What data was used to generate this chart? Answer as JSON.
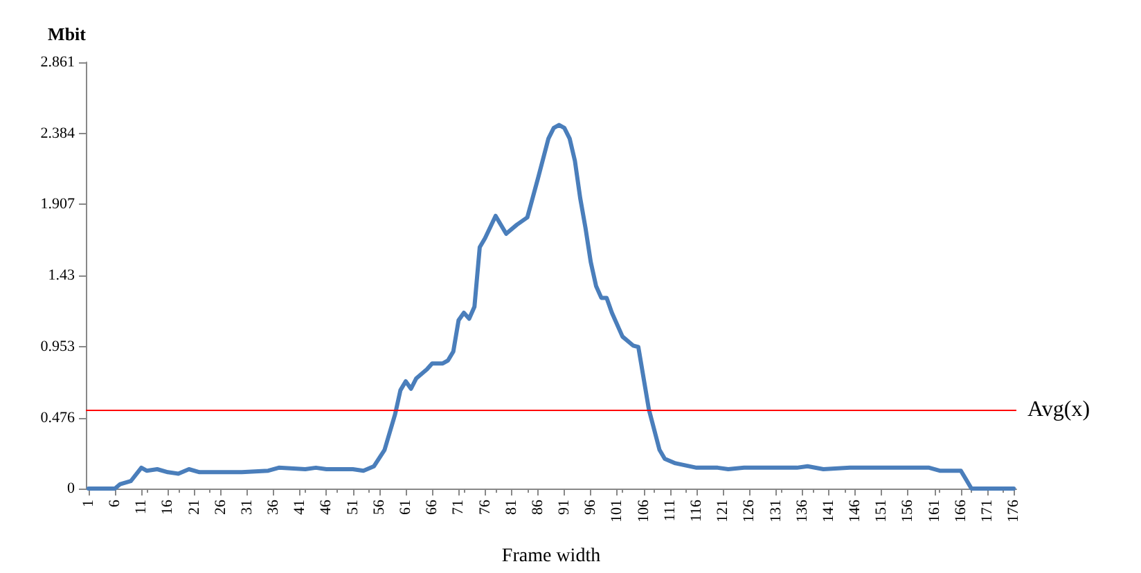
{
  "chart_data": {
    "type": "line",
    "xlabel": "Frame width",
    "ylabel": "Mbit",
    "x": [
      1,
      6,
      7,
      9,
      11,
      12,
      14,
      16,
      18,
      20,
      22,
      30,
      35,
      37,
      42,
      44,
      46,
      51,
      53,
      55,
      57,
      59,
      60,
      61,
      62,
      63,
      65,
      66,
      68,
      69,
      70,
      71,
      72,
      73,
      74,
      75,
      76,
      78,
      80,
      82,
      84,
      86,
      88,
      89,
      90,
      91,
      92,
      93,
      94,
      95,
      96,
      97,
      98,
      99,
      100,
      102,
      104,
      105,
      107,
      109,
      110,
      112,
      116,
      120,
      122,
      125,
      135,
      137,
      140,
      145,
      150,
      160,
      162,
      166,
      167,
      168,
      170,
      176
    ],
    "series": [
      {
        "color": "#4a7ebb",
        "values": [
          0,
          0,
          0.03,
          0.05,
          0.14,
          0.12,
          0.13,
          0.11,
          0.1,
          0.13,
          0.11,
          0.11,
          0.12,
          0.14,
          0.13,
          0.14,
          0.13,
          0.13,
          0.12,
          0.15,
          0.26,
          0.5,
          0.66,
          0.72,
          0.67,
          0.74,
          0.8,
          0.84,
          0.84,
          0.86,
          0.92,
          1.13,
          1.18,
          1.14,
          1.22,
          1.62,
          1.68,
          1.83,
          1.71,
          1.77,
          1.82,
          2.08,
          2.35,
          2.42,
          2.44,
          2.42,
          2.35,
          2.2,
          1.95,
          1.75,
          1.52,
          1.36,
          1.28,
          1.28,
          1.18,
          1.02,
          0.96,
          0.95,
          0.53,
          0.26,
          0.2,
          0.17,
          0.14,
          0.14,
          0.13,
          0.14,
          0.14,
          0.15,
          0.13,
          0.14,
          0.14,
          0.14,
          0.12,
          0.12,
          0.06,
          0,
          0,
          0
        ]
      }
    ],
    "xlim": [
      0.5,
      176.5
    ],
    "xticks": [
      1,
      6,
      11,
      16,
      21,
      26,
      31,
      36,
      41,
      46,
      51,
      56,
      61,
      66,
      71,
      76,
      81,
      86,
      91,
      96,
      101,
      106,
      111,
      116,
      121,
      126,
      131,
      136,
      141,
      146,
      151,
      156,
      161,
      166,
      171,
      176
    ],
    "ylim": [
      0,
      2.861
    ],
    "yticks": [
      0,
      0.476,
      0.953,
      1.43,
      1.907,
      2.384,
      2.861
    ],
    "ref_lines": [
      {
        "axis": "y",
        "value": 0.526,
        "label": "Avg(x)",
        "color": "#ff0000"
      }
    ],
    "grid": false,
    "marker": "none",
    "line_style": "solid"
  }
}
